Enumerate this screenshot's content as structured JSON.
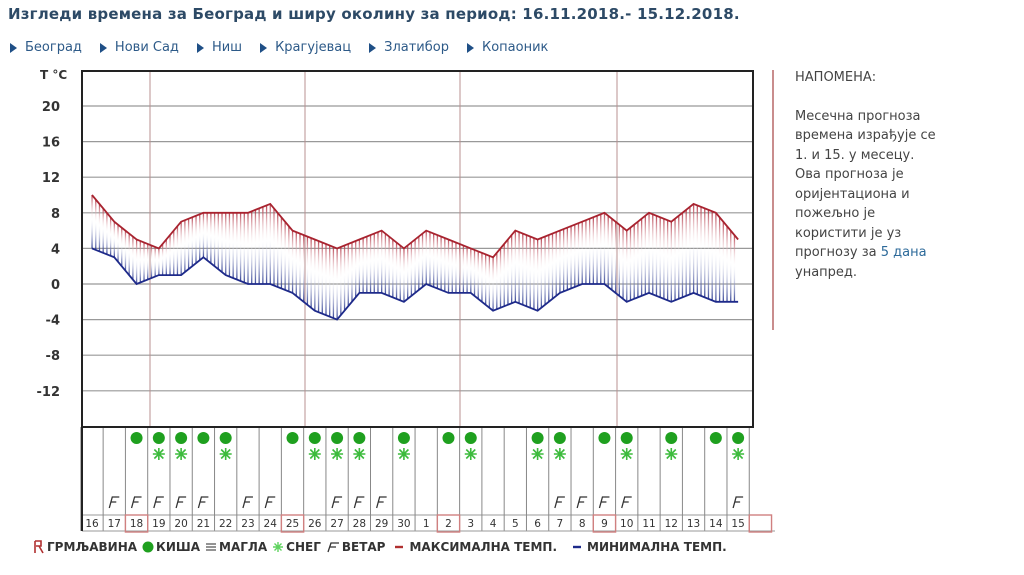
{
  "header": {
    "title": "Изгледи времена за Београд и ширу околину за период: 16.11.2018.- 15.12.2018."
  },
  "nav": {
    "items": [
      {
        "label": "Београд"
      },
      {
        "label": "Нови Сад"
      },
      {
        "label": "Ниш"
      },
      {
        "label": "Крагујевац"
      },
      {
        "label": "Златибор"
      },
      {
        "label": "Копаоник"
      }
    ]
  },
  "note": {
    "heading": "НАПОМЕНА:",
    "line1": "Месечна прогноза",
    "line2": "времена израђује се",
    "line3": "1. и 15. у месецу.",
    "line4": "Ова прогноза је",
    "line5": "оријентациона и",
    "line6": "пожељно је",
    "line7": "користити је уз",
    "line8_pre": "прогнозу за ",
    "line8_link": "5 дана",
    "line9": "унапред."
  },
  "legend": {
    "thunder": "ГРМЉАВИНА",
    "rain": "КИША",
    "fog": "МАГЛА",
    "snow": "СНЕГ",
    "wind": "ВЕТАР",
    "max": "МАКСИМАЛНА ТЕМП.",
    "min": "МИНИМАЛНА ТЕМП."
  },
  "colors": {
    "max_line": "#a8232f",
    "min_line": "#1e2a8a",
    "rain": "#1fa01f",
    "snow": "#3dbb3d",
    "highlight_box": "#d08080",
    "title": "#2d4a66"
  },
  "chart_data": {
    "type": "line",
    "title": "",
    "ylabel": "T °C",
    "xlabel": "",
    "ylim": [
      -16,
      22
    ],
    "yticks": [
      20,
      16,
      12,
      8,
      4,
      0,
      -4,
      -8,
      -12
    ],
    "grid": true,
    "categories": [
      "16",
      "17",
      "18",
      "19",
      "20",
      "21",
      "22",
      "23",
      "24",
      "25",
      "26",
      "27",
      "28",
      "29",
      "30",
      "1",
      "2",
      "3",
      "4",
      "5",
      "6",
      "7",
      "8",
      "9",
      "10",
      "11",
      "12",
      "13",
      "14",
      "15"
    ],
    "series": [
      {
        "name": "МАКСИМАЛНА ТЕМП.",
        "values": [
          10,
          7,
          5,
          4,
          7,
          8,
          8,
          8,
          9,
          6,
          5,
          4,
          5,
          6,
          4,
          6,
          5,
          4,
          3,
          6,
          5,
          6,
          7,
          8,
          6,
          8,
          7,
          9,
          8,
          5
        ]
      },
      {
        "name": "МИНИМАЛНА ТЕМП.",
        "values": [
          4,
          3,
          0,
          1,
          1,
          3,
          1,
          0,
          0,
          -1,
          -3,
          -4,
          -1,
          -1,
          -2,
          0,
          -1,
          -1,
          -3,
          -2,
          -3,
          -1,
          0,
          0,
          -2,
          -1,
          -2,
          -1,
          -2,
          -2
        ]
      }
    ],
    "weather": {
      "rain": [
        "18",
        "19",
        "20",
        "21",
        "22",
        "25",
        "26",
        "27",
        "28",
        "30",
        "2",
        "3",
        "6",
        "7",
        "9",
        "10",
        "12",
        "14",
        "15"
      ],
      "snow": [
        "19",
        "20",
        "22",
        "26",
        "27",
        "28",
        "30",
        "3",
        "6",
        "7",
        "10",
        "12",
        "15"
      ],
      "wind": [
        "17",
        "18",
        "19",
        "20",
        "21",
        "23",
        "24",
        "27",
        "28",
        "29",
        "7",
        "8",
        "9",
        "10",
        "15"
      ]
    },
    "highlighted_days": [
      "18",
      "25",
      "2",
      "9"
    ],
    "legend_position": "bottom"
  }
}
